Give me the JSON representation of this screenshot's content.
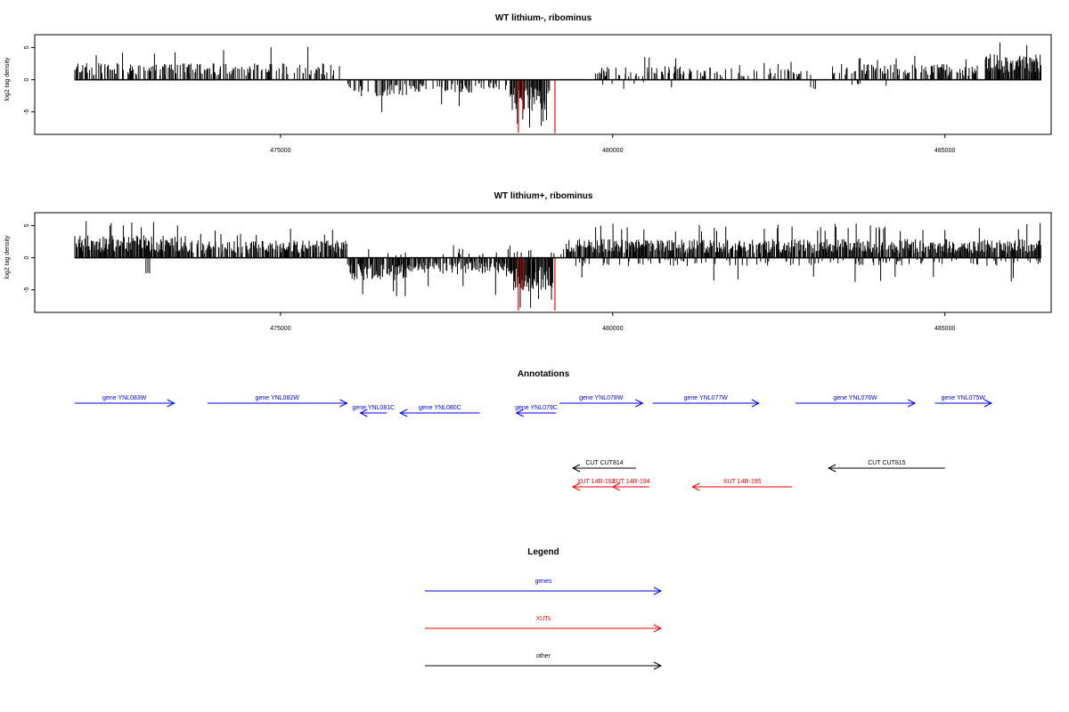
{
  "chart_data": [
    {
      "type": "bar",
      "title": "WT lithium-, ribominus",
      "xlabel": "",
      "ylabel": "log2 tag density",
      "xlim": [
        471300,
        486600
      ],
      "ylim": [
        -8.5,
        7
      ],
      "x_ticks": [
        475000,
        480000,
        485000
      ],
      "x_tick_labels": [
        "475000",
        "480000",
        "485000"
      ],
      "y_ticks": [
        -5,
        0,
        5
      ],
      "y_tick_labels": [
        "-5",
        "0",
        "5"
      ],
      "grid": false,
      "series": [
        {
          "strand": "plus",
          "color": "#000000",
          "segments": [
            {
              "from": 471900,
              "to": 474200,
              "density": 0.55,
              "mean": 1.8,
              "max": 4.6
            },
            {
              "from": 474200,
              "to": 475900,
              "density": 0.4,
              "mean": 1.8,
              "max": 5.2
            },
            {
              "from": 479700,
              "to": 481200,
              "density": 0.45,
              "mean": 1.5,
              "max": 3.6
            },
            {
              "from": 481200,
              "to": 483000,
              "density": 0.3,
              "mean": 1.3,
              "max": 3.0
            },
            {
              "from": 483300,
              "to": 485500,
              "density": 0.5,
              "mean": 1.7,
              "max": 3.8
            },
            {
              "from": 485600,
              "to": 486450,
              "density": 1.0,
              "mean": 2.8,
              "max": 6.5
            }
          ]
        },
        {
          "strand": "minus",
          "color": "#000000",
          "segments": [
            {
              "from": 476000,
              "to": 476900,
              "density": 0.55,
              "mean": -1.8,
              "max": -5.3
            },
            {
              "from": 476900,
              "to": 477900,
              "density": 0.45,
              "mean": -1.4,
              "max": -4.5
            },
            {
              "from": 477900,
              "to": 478400,
              "density": 0.3,
              "mean": -1.2,
              "max": -4.0
            },
            {
              "from": 478450,
              "to": 479050,
              "density": 1.0,
              "mean": -3.4,
              "max": -7.5
            },
            {
              "from": 479700,
              "to": 481000,
              "density": 0.05,
              "mean": -1.0,
              "max": -2.8
            },
            {
              "from": 482900,
              "to": 484300,
              "density": 0.05,
              "mean": -1.0,
              "max": -2.7
            }
          ]
        }
      ],
      "highlights": [
        {
          "x": 478580,
          "y": -8.2,
          "color": "#ff0000"
        },
        {
          "x": 478650,
          "y": -5.0,
          "color": "#ff0000"
        },
        {
          "x": 479130,
          "y": -8.3,
          "color": "#ff0000"
        }
      ]
    },
    {
      "type": "bar",
      "title": "WT lithium+, ribominus",
      "xlabel": "",
      "ylabel": "log2 tag density",
      "xlim": [
        471300,
        486600
      ],
      "ylim": [
        -8.5,
        7
      ],
      "x_ticks": [
        475000,
        480000,
        485000
      ],
      "x_tick_labels": [
        "475000",
        "480000",
        "485000"
      ],
      "y_ticks": [
        -5,
        0,
        5
      ],
      "y_tick_labels": [
        "-5",
        "0",
        "5"
      ],
      "grid": false,
      "series": [
        {
          "strand": "plus",
          "color": "#000000",
          "segments": [
            {
              "from": 471900,
              "to": 473600,
              "density": 1.0,
              "mean": 2.4,
              "max": 6.0
            },
            {
              "from": 473600,
              "to": 476000,
              "density": 0.75,
              "mean": 1.9,
              "max": 4.6
            },
            {
              "from": 476000,
              "to": 479300,
              "density": 0.08,
              "mean": 1.0,
              "max": 2.2
            },
            {
              "from": 479300,
              "to": 486450,
              "density": 0.9,
              "mean": 2.0,
              "max": 5.4
            }
          ]
        },
        {
          "strand": "minus",
          "color": "#000000",
          "segments": [
            {
              "from": 472950,
              "to": 473050,
              "density": 0.5,
              "mean": -2.6,
              "max": -2.7
            },
            {
              "from": 476000,
              "to": 476900,
              "density": 0.95,
              "mean": -2.4,
              "max": -6.3
            },
            {
              "from": 476900,
              "to": 478400,
              "density": 0.8,
              "mean": -1.8,
              "max": -5.8
            },
            {
              "from": 478400,
              "to": 479100,
              "density": 1.0,
              "mean": -3.6,
              "max": -8.0
            },
            {
              "from": 479300,
              "to": 486450,
              "density": 0.2,
              "mean": -0.9,
              "max": -3.8
            }
          ]
        }
      ],
      "highlights": [
        {
          "x": 478580,
          "y": -8.2,
          "color": "#ff0000"
        },
        {
          "x": 478650,
          "y": -5.0,
          "color": "#ff0000"
        },
        {
          "x": 479130,
          "y": -8.2,
          "color": "#ff0000"
        }
      ]
    }
  ],
  "annotations": {
    "title": "Annotations",
    "genes": [
      {
        "label": "gene YNL083W",
        "start": 471900,
        "end": 473400,
        "dir": "right"
      },
      {
        "label": "gene YNL082W",
        "start": 473900,
        "end": 476000,
        "dir": "right"
      },
      {
        "label": "gene YNL081C",
        "start": 476200,
        "end": 476600,
        "dir": "left"
      },
      {
        "label": "gene YNL080C",
        "start": 476800,
        "end": 478000,
        "dir": "left"
      },
      {
        "label": "gene YNL079C",
        "start": 478550,
        "end": 479150,
        "dir": "left"
      },
      {
        "label": "gene YNL078W",
        "start": 479200,
        "end": 480450,
        "dir": "right"
      },
      {
        "label": "gene YNL077W",
        "start": 480600,
        "end": 482200,
        "dir": "right"
      },
      {
        "label": "gene YNL076W",
        "start": 482750,
        "end": 484550,
        "dir": "right"
      },
      {
        "label": "gene YNL075W",
        "start": 484850,
        "end": 485700,
        "dir": "right"
      }
    ],
    "other": [
      {
        "label": "CUT CUT814",
        "start": 479400,
        "end": 480350,
        "dir": "left"
      },
      {
        "label": "CUT CUT815",
        "start": 483250,
        "end": 485000,
        "dir": "left"
      }
    ],
    "xuts": [
      {
        "label": "XUT 14R-192",
        "start": 479400,
        "end": 480100,
        "dir": "left"
      },
      {
        "label": "XUT 14R-194",
        "start": 480000,
        "end": 480550,
        "dir": "left"
      },
      {
        "label": "XUT 14R-195",
        "start": 481200,
        "end": 482700,
        "dir": "left"
      }
    ],
    "colors": {
      "genes": "#0000ff",
      "xuts": "#ff0000",
      "other": "#000000"
    }
  },
  "legend": {
    "title": "Legend",
    "items": [
      {
        "label": "genes",
        "color": "#0000ff"
      },
      {
        "label": "XUTs",
        "color": "#ff0000"
      },
      {
        "label": "other",
        "color": "#000000"
      }
    ]
  }
}
